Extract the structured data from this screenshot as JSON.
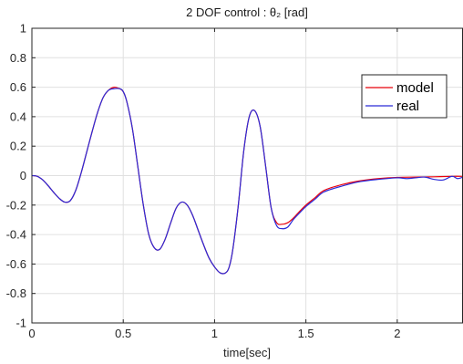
{
  "chart_data": {
    "type": "line",
    "title": "2 DOF control : θ₂ [rad]",
    "xlabel": "time[sec]",
    "ylabel": "",
    "xlim": [
      0,
      2.36
    ],
    "ylim": [
      -1,
      1
    ],
    "grid": true,
    "legend_position": "top-right",
    "x_ticks": [
      "0",
      "0.5",
      "1",
      "1.5",
      "2"
    ],
    "y_ticks": [
      "1",
      "0.8",
      "0.6",
      "0.4",
      "0.2",
      "0",
      "-0.2",
      "-0.4",
      "-0.6",
      "-0.8",
      "-1"
    ],
    "x_tick_values": [
      0,
      0.5,
      1,
      1.5,
      2
    ],
    "y_tick_values": [
      1,
      0.8,
      0.6,
      0.4,
      0.2,
      0,
      -0.2,
      -0.4,
      -0.6,
      -0.8,
      -1
    ],
    "series": [
      {
        "name": "model",
        "color": "#e8000b",
        "x": [
          0,
          0.03,
          0.06,
          0.09,
          0.12,
          0.15,
          0.18,
          0.21,
          0.24,
          0.27,
          0.3,
          0.33,
          0.36,
          0.39,
          0.42,
          0.45,
          0.48,
          0.5,
          0.52,
          0.55,
          0.58,
          0.61,
          0.64,
          0.67,
          0.7,
          0.73,
          0.76,
          0.79,
          0.82,
          0.85,
          0.88,
          0.91,
          0.94,
          0.97,
          1.0,
          1.03,
          1.06,
          1.08,
          1.1,
          1.13,
          1.16,
          1.19,
          1.22,
          1.25,
          1.28,
          1.31,
          1.34,
          1.37,
          1.4,
          1.43,
          1.46,
          1.5,
          1.55,
          1.6,
          1.7,
          1.8,
          1.9,
          2.0,
          2.1,
          2.2,
          2.3,
          2.36
        ],
        "values": [
          0,
          -0.005,
          -0.03,
          -0.07,
          -0.115,
          -0.155,
          -0.18,
          -0.17,
          -0.1,
          0.02,
          0.16,
          0.3,
          0.43,
          0.53,
          0.58,
          0.6,
          0.59,
          0.57,
          0.5,
          0.32,
          0.06,
          -0.2,
          -0.4,
          -0.49,
          -0.5,
          -0.43,
          -0.32,
          -0.22,
          -0.18,
          -0.2,
          -0.27,
          -0.37,
          -0.47,
          -0.56,
          -0.62,
          -0.66,
          -0.66,
          -0.62,
          -0.5,
          -0.2,
          0.17,
          0.4,
          0.44,
          0.33,
          0.06,
          -0.22,
          -0.32,
          -0.33,
          -0.32,
          -0.29,
          -0.25,
          -0.2,
          -0.15,
          -0.1,
          -0.06,
          -0.035,
          -0.02,
          -0.012,
          -0.01,
          -0.008,
          -0.005,
          -0.005
        ]
      },
      {
        "name": "real",
        "color": "#2b2bd8",
        "x": [
          0,
          0.03,
          0.06,
          0.09,
          0.12,
          0.15,
          0.18,
          0.21,
          0.24,
          0.27,
          0.3,
          0.33,
          0.36,
          0.39,
          0.42,
          0.45,
          0.48,
          0.5,
          0.52,
          0.55,
          0.58,
          0.61,
          0.64,
          0.67,
          0.7,
          0.73,
          0.76,
          0.79,
          0.82,
          0.85,
          0.88,
          0.91,
          0.94,
          0.97,
          1.0,
          1.03,
          1.06,
          1.08,
          1.1,
          1.13,
          1.16,
          1.19,
          1.22,
          1.25,
          1.28,
          1.31,
          1.34,
          1.37,
          1.4,
          1.43,
          1.46,
          1.5,
          1.55,
          1.6,
          1.7,
          1.8,
          1.9,
          2.0,
          2.05,
          2.1,
          2.15,
          2.2,
          2.25,
          2.3,
          2.33,
          2.36
        ],
        "values": [
          0,
          -0.005,
          -0.03,
          -0.07,
          -0.115,
          -0.155,
          -0.18,
          -0.17,
          -0.1,
          0.02,
          0.16,
          0.3,
          0.43,
          0.53,
          0.58,
          0.59,
          0.59,
          0.57,
          0.5,
          0.32,
          0.06,
          -0.2,
          -0.4,
          -0.49,
          -0.5,
          -0.43,
          -0.32,
          -0.22,
          -0.18,
          -0.2,
          -0.27,
          -0.37,
          -0.47,
          -0.56,
          -0.62,
          -0.66,
          -0.66,
          -0.62,
          -0.5,
          -0.2,
          0.17,
          0.4,
          0.44,
          0.33,
          0.06,
          -0.22,
          -0.34,
          -0.36,
          -0.35,
          -0.3,
          -0.26,
          -0.21,
          -0.16,
          -0.11,
          -0.07,
          -0.04,
          -0.025,
          -0.015,
          -0.02,
          -0.015,
          -0.01,
          -0.025,
          -0.03,
          -0.005,
          -0.02,
          -0.01
        ]
      }
    ]
  }
}
